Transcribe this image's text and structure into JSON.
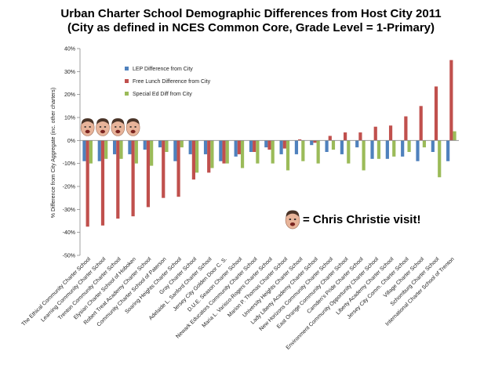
{
  "chart_data": {
    "type": "bar",
    "title": "Urban Charter School Demographic Differences from Host City 2011",
    "subtitle": "(City as defined in NCES Common Core, Grade Level = 1-Primary)",
    "ylabel": "% Difference from City Aggregate (inc. other charters)",
    "xlabel": "",
    "ylim": [
      -50,
      40
    ],
    "yticks": [
      "40%",
      "30%",
      "20%",
      "10%",
      "0%",
      "-10%",
      "-20%",
      "-30%",
      "-40%",
      "-50%"
    ],
    "ytick_values": [
      40,
      30,
      20,
      10,
      0,
      -10,
      -20,
      -30,
      -40,
      -50
    ],
    "legend_position": "top-left",
    "categories": [
      "The Ethical Community Charter School",
      "Learning Community Charter School",
      "Trenton Community Charter School",
      "Elysian Charter School of Hoboken",
      "Robert Treat Academy Charter School",
      "Community Charter School of Paterson",
      "Soaring Heights Charter School",
      "Gray Charter School",
      "Adelaide L. Sanford Charter School",
      "Jersey City Golden Door C. S.",
      "D.U.E. Season Charter School",
      "Newark Educators Community Charter School",
      "Maria L. Varisco-Rogers Charter School",
      "Marion P. Thomas Charter School",
      "University Heights Charter School",
      "Lady Liberty Academy Charter School",
      "New Horizons Community Charter School",
      "East Orange Community Charter School",
      "Camden's Pride Charter School",
      "Environment Community Opportunity Charter School",
      "Liberty Academy Charter School",
      "Jersey City Comm. Charter School",
      "Village Charter School",
      "Schomburg Charter School",
      "International Charter School of Trenton"
    ],
    "series": [
      {
        "name": "LEP Difference from City",
        "color": "#4f81bd",
        "values": [
          -9,
          -9,
          -6,
          -6,
          -4,
          -3,
          -9,
          -6,
          -6,
          -9,
          -7,
          -5,
          -3,
          -6,
          -6,
          -2,
          -5,
          -6,
          -3,
          -8,
          -8,
          -7,
          -9,
          -5,
          -9
        ]
      },
      {
        "name": "Free Lunch Difference from City",
        "color": "#c0504d",
        "values": [
          -37.5,
          -37,
          -34,
          -33,
          -29,
          -25,
          -24.5,
          -17,
          -14,
          -10,
          -6,
          -5,
          -4,
          -3.5,
          0.5,
          -1,
          2,
          3.5,
          3.5,
          6,
          6.5,
          10.5,
          15,
          23.5,
          35
        ]
      },
      {
        "name": "Special Ed Diff from City",
        "color": "#9bbb59",
        "values": [
          -10,
          -8,
          -8,
          -10,
          -11,
          -5,
          -3,
          -14,
          -12,
          -10,
          -12,
          -10,
          -10,
          -13,
          -9,
          -10,
          -4,
          -10,
          -13,
          -8,
          -7,
          -5,
          -3,
          -16,
          4
        ]
      }
    ],
    "christie_visits": [
      0,
      1,
      2,
      3
    ],
    "annotation": "= Chris Christie visit!"
  }
}
